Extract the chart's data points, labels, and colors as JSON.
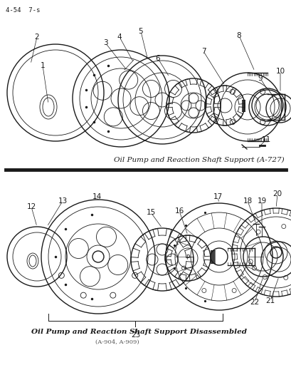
{
  "page_number": "4-54  7-s",
  "bg_color": "#ffffff",
  "line_color": "#1a1a1a",
  "top_caption": "Oil Pump and Reaction Shaft Support (A-727)",
  "bottom_caption": "Oil Pump and Reaction Shaft Support Disassembled",
  "bottom_subcaption": "(A-904, A-909)",
  "fig_width": 4.1,
  "fig_height": 5.33,
  "dpi": 100
}
